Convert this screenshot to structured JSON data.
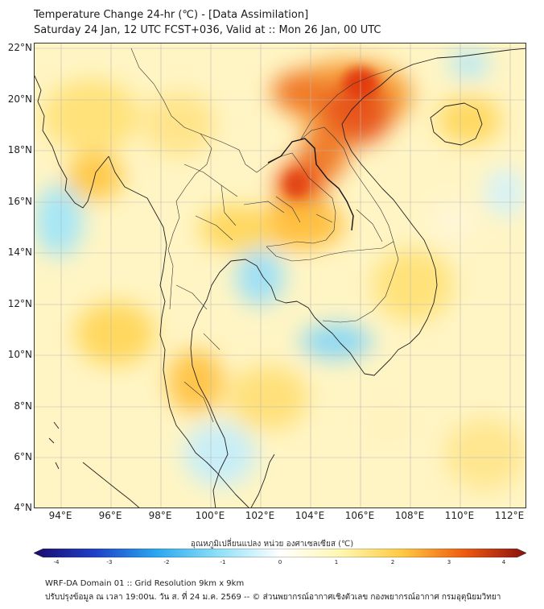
{
  "header": {
    "title_line1": "Temperature Change 24-hr (℃) - [Data Assimilation]",
    "title_line2": "Saturday 24 Jan, 12 UTC FCST+036, Valid at :: Mon 26 Jan, 00 UTC"
  },
  "map": {
    "lat_labels": [
      "22°N",
      "20°N",
      "18°N",
      "16°N",
      "14°N",
      "12°N",
      "10°N",
      "8°N",
      "6°N",
      "4°N"
    ],
    "lon_labels": [
      "94°E",
      "96°E",
      "98°E",
      "100°E",
      "102°E",
      "104°E",
      "106°E",
      "108°E",
      "110°E",
      "112°E"
    ],
    "warm_spots": [
      {
        "name": "north-vietnam-laos-peak",
        "lon": 105.5,
        "lat": 20.5,
        "intensity": 3
      },
      {
        "name": "central-laos-peak",
        "lon": 103.5,
        "lat": 16.8,
        "intensity": 3
      },
      {
        "name": "southern-thailand",
        "lon": 98.8,
        "lat": 9.0,
        "intensity": 1.5
      }
    ],
    "cool_spots": [
      {
        "name": "gulf-of-thailand-north",
        "lon": 101.8,
        "lat": 13.0,
        "intensity": -0.8
      },
      {
        "name": "mekong-delta",
        "lon": 105.5,
        "lat": 10.5,
        "intensity": -1.0
      },
      {
        "name": "andaman-sea-west",
        "lon": 93.5,
        "lat": 15.0,
        "intensity": -0.7
      }
    ]
  },
  "colorbar": {
    "label": "อุณหภูมิเปลี่ยนแปลง หน่วย องศาเซลเซียส (℃)",
    "min": -4,
    "max": 4,
    "ticks": [
      "-4",
      "-3",
      "-2",
      "-1",
      "0",
      "1",
      "2",
      "3",
      "4"
    ],
    "colors": [
      "#1a0a6e",
      "#2040c8",
      "#2aa8f0",
      "#8fe0f8",
      "#ffffff",
      "#fff7b0",
      "#ffc840",
      "#f05a10",
      "#8a1010"
    ]
  },
  "footer": {
    "line1": "WRF-DA Domain 01 :: Grid Resolution 9km x 9km",
    "line2": "ปรับปรุงข้อมูล ณ เวลา 19:00น. วัน ส. ที่ 24 ม.ค. 2569 -- © ส่วนพยากรณ์อากาศเชิงตัวเลข กองพยากรณ์อากาศ กรมอุตุนิยมวิทยา"
  }
}
